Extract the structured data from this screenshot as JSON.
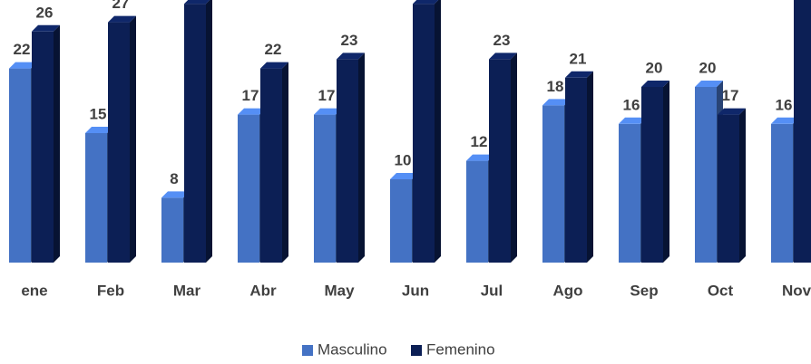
{
  "chart_data": {
    "type": "bar3d",
    "categories": [
      "ene",
      "Feb",
      "Mar",
      "Abr",
      "May",
      "Jun",
      "Jul",
      "Ago",
      "Sep",
      "Oct",
      "Nov"
    ],
    "series": [
      {
        "name": "Masculino",
        "color": "#4472c4",
        "values": [
          22,
          15,
          8,
          17,
          17,
          10,
          12,
          18,
          16,
          20,
          16
        ]
      },
      {
        "name": "Femenino",
        "color": "#0c1f55",
        "values": [
          26,
          27,
          29,
          22,
          23,
          29,
          23,
          21,
          20,
          17,
          30
        ]
      }
    ],
    "legend": "bottom"
  }
}
